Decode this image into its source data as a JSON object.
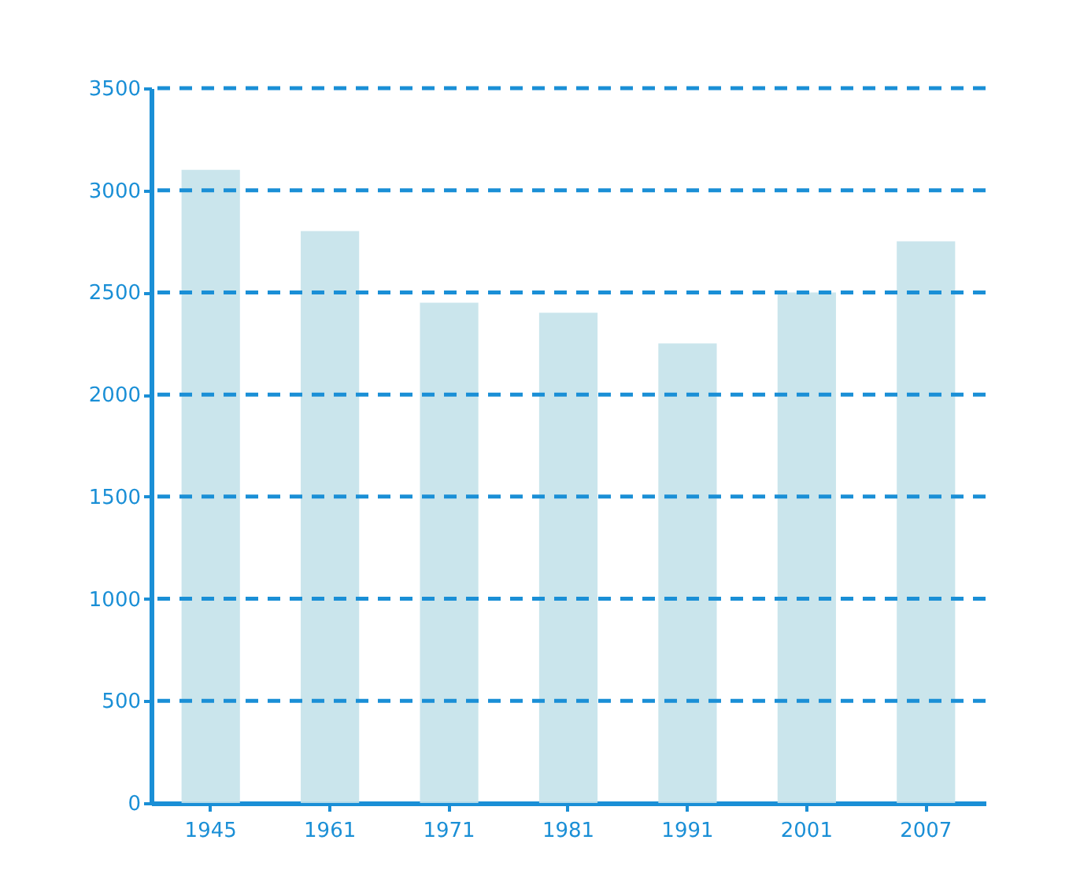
{
  "chart_data": {
    "type": "bar",
    "categories": [
      "1945",
      "1961",
      "1971",
      "1981",
      "1991",
      "2001",
      "2007"
    ],
    "values": [
      3100,
      2800,
      2450,
      2400,
      2250,
      2500,
      2750
    ],
    "color": "#c4e2ea",
    "ylim": [
      0,
      3500
    ],
    "yticks": [
      0,
      500,
      1000,
      1500,
      2000,
      2500,
      3000,
      3500
    ],
    "grid": "y"
  }
}
